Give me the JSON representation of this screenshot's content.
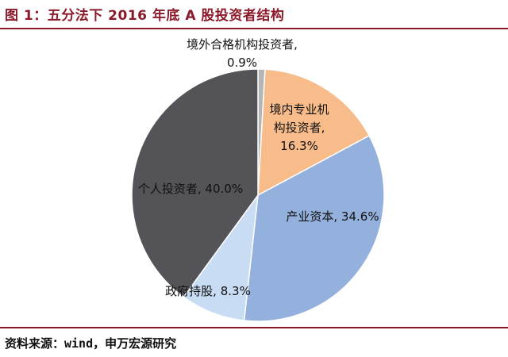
{
  "figure": {
    "title": "图 1：五分法下 2016 年底 A 股投资者结构",
    "source": "资料来源：wind，申万宏源研究"
  },
  "chart_data": {
    "type": "pie",
    "title": "",
    "unit": "%",
    "start_angle_deg": 0,
    "direction": "clockwise",
    "slices": [
      {
        "label": "境外合格机构投资者",
        "value": 0.9,
        "color": "#b5b5b5",
        "label_lines": [
          "境外合格机构投资者,",
          "0.9%"
        ]
      },
      {
        "label": "境内专业机构投资者",
        "value": 16.3,
        "color": "#f8bb8a",
        "label_lines": [
          "境内专业机",
          "构投资者,",
          "16.3%"
        ]
      },
      {
        "label": "产业资本",
        "value": 34.6,
        "color": "#93b1dc",
        "label_lines": [
          "产业资本, 34.6%"
        ]
      },
      {
        "label": "政府持股",
        "value": 8.3,
        "color": "#c8dcf3",
        "label_lines": [
          "政府持股, 8.3%"
        ]
      },
      {
        "label": "个人投资者",
        "value": 40.0,
        "color": "#545458",
        "label_lines": [
          "个人投资者, 40.0%"
        ]
      }
    ]
  }
}
